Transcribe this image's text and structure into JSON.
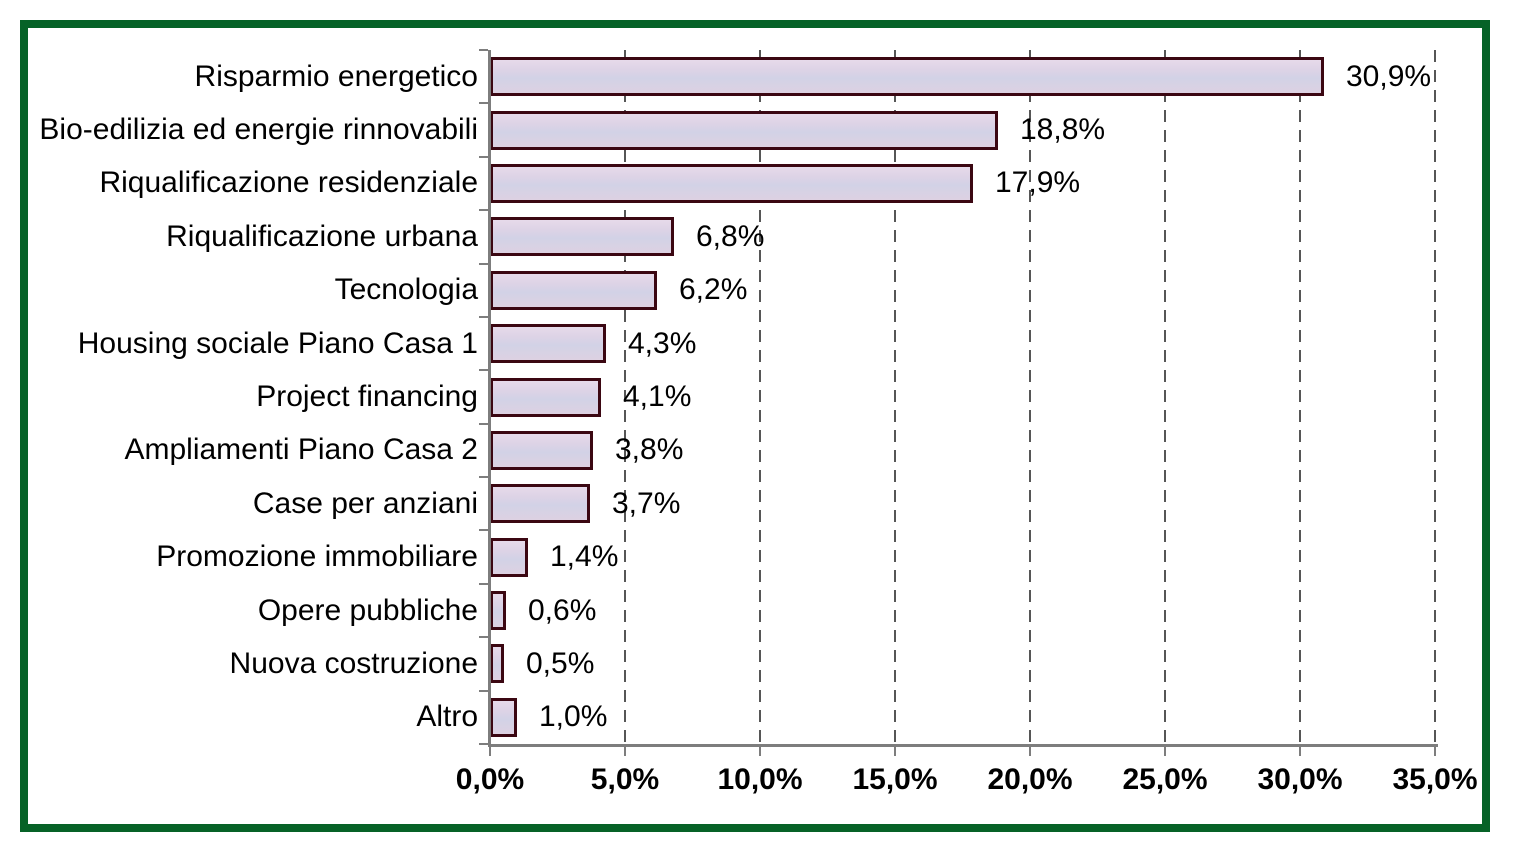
{
  "chart_data": {
    "type": "bar",
    "orientation": "horizontal",
    "title": "",
    "xlabel": "",
    "ylabel": "",
    "categories": [
      "Risparmio energetico",
      "Bio-edilizia ed energie rinnovabili",
      "Riqualificazione residenziale",
      "Riqualificazione urbana",
      "Tecnologia",
      "Housing sociale Piano Casa 1",
      "Project financing",
      "Ampliamenti Piano Casa 2",
      "Case per anziani",
      "Promozione immobiliare",
      "Opere pubbliche",
      "Nuova costruzione",
      "Altro"
    ],
    "values": [
      30.9,
      18.8,
      17.9,
      6.8,
      6.2,
      4.3,
      4.1,
      3.8,
      3.7,
      1.4,
      0.6,
      0.5,
      1.0
    ],
    "value_labels": [
      "30,9%",
      "18,8%",
      "17,9%",
      "6,8%",
      "6,2%",
      "4,3%",
      "4,1%",
      "3,8%",
      "3,7%",
      "1,4%",
      "0,6%",
      "0,5%",
      "1,0%"
    ],
    "x_tick_labels": [
      "0,0%",
      "5,0%",
      "10,0%",
      "15,0%",
      "20,0%",
      "25,0%",
      "30,0%",
      "35,0%"
    ],
    "x_tick_values": [
      0,
      5,
      10,
      15,
      20,
      25,
      30,
      35
    ],
    "xlim": [
      0,
      35
    ],
    "grid": "dashed-vertical",
    "legend": "none",
    "colors": {
      "bar_fill": "#ddd1e2",
      "bar_border": "#3b0712",
      "frame_border": "#066227",
      "gridline": "#565656",
      "axis": "#7d7d7d",
      "text": "#000000",
      "background": "#ffffff"
    }
  }
}
